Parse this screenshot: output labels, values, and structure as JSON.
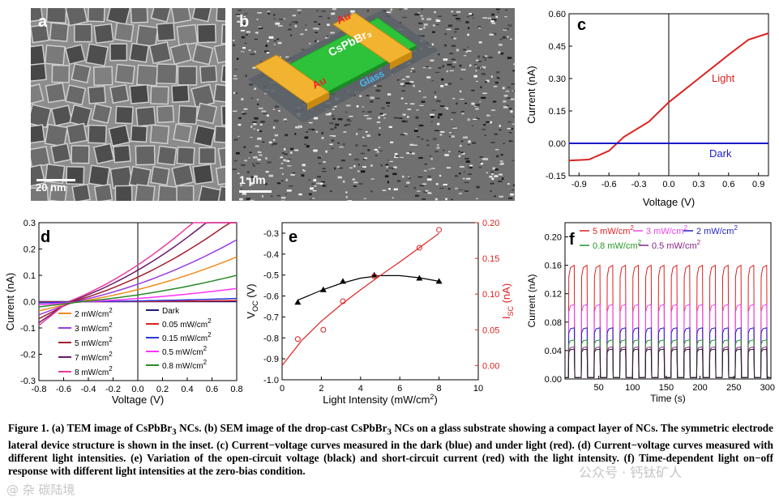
{
  "panels": {
    "a": {
      "label": "a",
      "scale_bar": "20 nm"
    },
    "b": {
      "label": "b",
      "scale_bar": "1 μm",
      "inset": {
        "material": "CsPbBr₃",
        "electrode_top": "Au",
        "electrode_bottom": "Au",
        "substrate": "Glass"
      }
    },
    "c": {
      "label": "c"
    },
    "d": {
      "label": "d"
    },
    "e": {
      "label": "e"
    },
    "f": {
      "label": "f"
    }
  },
  "chart_data": [
    {
      "id": "c",
      "type": "line",
      "xlabel": "Voltage (V)",
      "ylabel": "Current (nA)",
      "xlim": [
        -1.0,
        1.0
      ],
      "ylim": [
        -0.15,
        0.6
      ],
      "xticks": [
        -0.9,
        -0.6,
        -0.3,
        0.0,
        0.3,
        0.6,
        0.9
      ],
      "xtick_labels": [
        "-0.9",
        "-0.6",
        "-0.3",
        "0.0",
        "0.3",
        "0.6",
        "0.9"
      ],
      "yticks": [
        -0.15,
        0.0,
        0.15,
        0.3,
        0.45,
        0.6
      ],
      "ytick_labels": [
        "-0.15",
        "0.00",
        "0.15",
        "0.30",
        "0.45",
        "0.60"
      ],
      "series": [
        {
          "name": "Light",
          "color": "#dd2222",
          "x": [
            -1.0,
            -0.8,
            -0.6,
            -0.45,
            -0.2,
            0.0,
            0.3,
            0.6,
            0.8,
            1.0
          ],
          "y": [
            -0.08,
            -0.075,
            -0.035,
            0.03,
            0.1,
            0.19,
            0.3,
            0.41,
            0.48,
            0.51
          ]
        },
        {
          "name": "Dark",
          "color": "#1a1acc",
          "x": [
            -1.0,
            1.0
          ],
          "y": [
            0.0,
            0.0
          ]
        }
      ],
      "annotations": [
        "Light",
        "Dark"
      ]
    },
    {
      "id": "d",
      "type": "line",
      "xlabel": "Voltage (V)",
      "ylabel": "Current (nA)",
      "xlim": [
        -0.8,
        0.8
      ],
      "ylim": [
        -0.3,
        0.3
      ],
      "xticks": [
        -0.8,
        -0.6,
        -0.4,
        -0.2,
        0.0,
        0.2,
        0.4,
        0.6,
        0.8
      ],
      "xtick_labels": [
        "-0.8",
        "-0.6",
        "-0.4",
        "-0.2",
        "0.0",
        "0.2",
        "0.4",
        "0.6",
        "0.8"
      ],
      "yticks": [
        -0.3,
        -0.2,
        -0.1,
        0.0,
        0.1,
        0.2,
        0.3
      ],
      "ytick_labels": [
        "-0.3",
        "-0.2",
        "-0.1",
        "0.0",
        "0.1",
        "0.2",
        "0.3"
      ],
      "series": [
        {
          "name": "2 mW/cm2",
          "color": "#f08a1c",
          "voc": -0.48,
          "end": 0.17,
          "start": -0.035
        },
        {
          "name": "3 mW/cm2",
          "color": "#9a3ce6",
          "voc": -0.51,
          "end": 0.235,
          "start": -0.05
        },
        {
          "name": "5 mW/cm2",
          "color": "#a01e2a",
          "voc": -0.53,
          "end": 0.32,
          "start": -0.065
        },
        {
          "name": "7 mW/cm2",
          "color": "#6a1a6a",
          "voc": -0.55,
          "end": 0.4,
          "start": -0.08
        },
        {
          "name": "8 mW/cm2",
          "color": "#ea3a9a",
          "voc": -0.56,
          "end": 0.46,
          "start": -0.09
        },
        {
          "name": "Dark",
          "color": "#1a1a7a",
          "voc": 0.0,
          "end": 0.0,
          "start": 0.0
        },
        {
          "name": "0.05 mW/cm2",
          "color": "#dd2222",
          "voc": -0.3,
          "end": 0.004,
          "start": -0.002
        },
        {
          "name": "0.15 mW/cm2",
          "color": "#2a3ad8",
          "voc": -0.38,
          "end": 0.012,
          "start": -0.005
        },
        {
          "name": "0.5 mW/cm2",
          "color": "#ff33ff",
          "voc": -0.42,
          "end": 0.05,
          "start": -0.012
        },
        {
          "name": "0.8 mW/cm2",
          "color": "#2a8a2a",
          "voc": -0.45,
          "end": 0.1,
          "start": -0.02
        }
      ],
      "legend_left": [
        {
          "text": "2 mW/cm",
          "sup": "2"
        },
        {
          "text": "3 mW/cm",
          "sup": "2"
        },
        {
          "text": "5 mW/cm",
          "sup": "2"
        },
        {
          "text": "7 mW/cm",
          "sup": "2"
        },
        {
          "text": "8 mW/cm",
          "sup": "2"
        }
      ],
      "legend_right": [
        {
          "text": "Dark",
          "sup": ""
        },
        {
          "text": "0.05 mW/cm",
          "sup": "2"
        },
        {
          "text": "0.15 mW/cm",
          "sup": "2"
        },
        {
          "text": "0.5 mW/cm",
          "sup": "2"
        },
        {
          "text": "0.8 mW/cm",
          "sup": "2"
        }
      ]
    },
    {
      "id": "e",
      "type": "scatter",
      "xlabel": "Light Intensity (mW/cm",
      "xlabel_sup": "2",
      "xlabel_end": ")",
      "ylabel_left": "V",
      "ylabel_left_sub": "OC",
      "ylabel_left_unit": " (V)",
      "ylabel_right": "I",
      "ylabel_right_sub": "SC",
      "ylabel_right_unit": " (nA)",
      "xlim": [
        0,
        10
      ],
      "ylim_left": [
        -1.0,
        -0.25
      ],
      "ylim_right": [
        -0.02,
        0.2
      ],
      "xticks": [
        0,
        2,
        4,
        6,
        8,
        10
      ],
      "xtick_labels": [
        "0",
        "2",
        "4",
        "6",
        "8",
        "10"
      ],
      "yticks_left": [
        -1.0,
        -0.9,
        -0.8,
        -0.7,
        -0.6,
        -0.5,
        -0.4,
        -0.3
      ],
      "ytick_labels_left": [
        "-1.0",
        "-0.9",
        "-0.8",
        "-0.7",
        "-0.6",
        "-0.5",
        "-0.4",
        "-0.3"
      ],
      "yticks_right": [
        0.0,
        0.05,
        0.1,
        0.15,
        0.2
      ],
      "ytick_labels_right": [
        "0.00",
        "0.05",
        "0.10",
        "0.15",
        "0.20"
      ],
      "series": [
        {
          "name": "Voc",
          "color": "#000000",
          "marker": "triangle",
          "x": [
            0.8,
            2.1,
            3.1,
            4.7,
            7.0,
            8.0
          ],
          "y": [
            -0.63,
            -0.57,
            -0.53,
            -0.5,
            -0.515,
            -0.53
          ],
          "fit_x": [
            0.8,
            2,
            3,
            4,
            5,
            6,
            7,
            8
          ],
          "fit_y": [
            -0.62,
            -0.573,
            -0.54,
            -0.515,
            -0.503,
            -0.503,
            -0.513,
            -0.53
          ]
        },
        {
          "name": "Isc",
          "color": "#dd2222",
          "marker": "open-circle",
          "x": [
            0.8,
            2.1,
            3.1,
            4.7,
            7.0,
            8.0
          ],
          "y": [
            0.037,
            0.05,
            0.09,
            0.125,
            0.165,
            0.19
          ],
          "fit_x": [
            0,
            1,
            2,
            3,
            4,
            5,
            6,
            7,
            8
          ],
          "fit_y": [
            0.0,
            0.035,
            0.062,
            0.085,
            0.106,
            0.126,
            0.145,
            0.165,
            0.185
          ]
        }
      ]
    },
    {
      "id": "f",
      "type": "line",
      "xlabel": "Time (s)",
      "ylabel": "Current (nA)",
      "xlim": [
        0,
        305
      ],
      "ylim": [
        0,
        0.22
      ],
      "xticks": [
        50,
        100,
        150,
        200,
        250,
        300
      ],
      "xtick_labels": [
        "50",
        "100",
        "150",
        "200",
        "250",
        "300"
      ],
      "yticks": [
        0.0,
        0.04,
        0.08,
        0.12,
        0.16,
        0.2
      ],
      "ytick_labels": [
        "0.00",
        "0.04",
        "0.08",
        "0.12",
        "0.16",
        "0.20"
      ],
      "cycle_start": 5,
      "cycle_period": 19.0,
      "on_duration": 9.5,
      "cycles": 16,
      "series": [
        {
          "name": "5 mW/cm2",
          "color": "#dd1f1f",
          "on": 0.16
        },
        {
          "name": "3 mW/cm2",
          "color": "#ee44ee",
          "on": 0.105
        },
        {
          "name": "2 mW/cm2",
          "color": "#2222cc",
          "on": 0.072
        },
        {
          "name": "0.8 mW/cm2",
          "color": "#229922",
          "on": 0.055
        },
        {
          "name": "0.5 mW/cm2",
          "color": "#882288",
          "on": 0.045
        },
        {
          "name": "dark",
          "color": "#222222",
          "on": 0.042
        }
      ],
      "legend": [
        {
          "text": "5 mW/cm",
          "sup": "2",
          "color": "#dd1f1f"
        },
        {
          "text": "3 mW/cm",
          "sup": "2",
          "color": "#ee44ee"
        },
        {
          "text": "2 mW/cm",
          "sup": "2",
          "color": "#2222cc"
        },
        {
          "text": "0.8 mW/cm",
          "sup": "2",
          "color": "#229922"
        },
        {
          "text": "0.5 mW/cm",
          "sup": "2",
          "color": "#882288"
        }
      ]
    }
  ],
  "caption": {
    "fig_label": "Figure 1.",
    "part1": "(a) TEM image of CsPbBr",
    "sub3a": "3",
    "part2": " NCs. (b) SEM image of the drop-cast CsPbBr",
    "sub3b": "3",
    "part3": " NCs on a glass substrate showing a compact layer of NCs. The symmetric electrode lateral device structure is shown in the inset. (c) Current−voltage curves measured in the dark (blue) and under light (red). (d) Current−voltage curves measured with different light intensities. (e) Variation of the open-circuit voltage (black) and short-circuit current (red) with the light intensity. (f) Time-dependent light on−off response with different light intensities at the zero-bias condition."
  },
  "watermarks": {
    "left": "@ 杂 碳陆境",
    "right": "公众号 · 钙钛矿人"
  }
}
